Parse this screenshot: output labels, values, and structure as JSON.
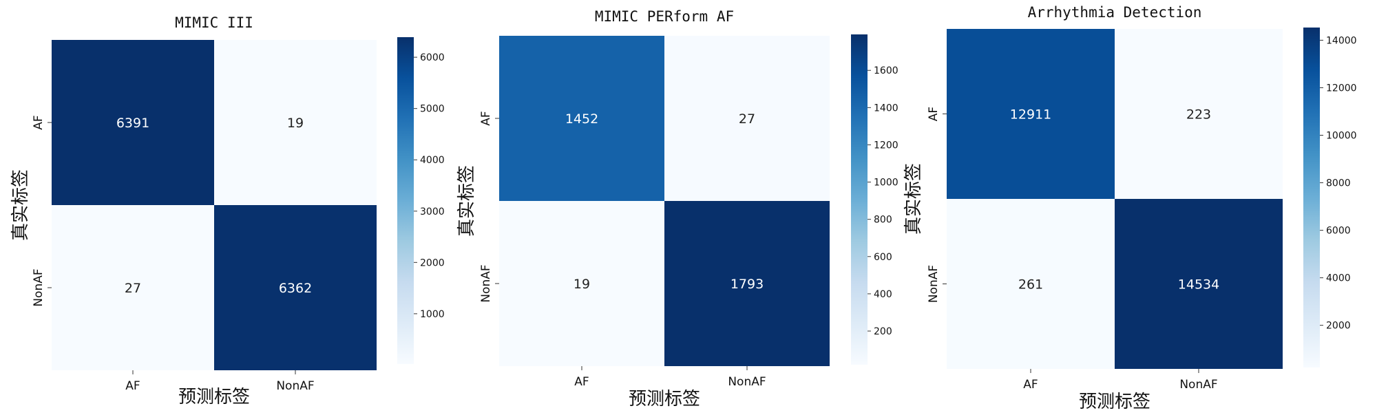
{
  "chart_data": [
    {
      "type": "heatmap",
      "title": "MIMIC III",
      "xlabel": "预测标签",
      "ylabel": "真实标签",
      "x_categories": [
        "AF",
        "NonAF"
      ],
      "y_categories": [
        "AF",
        "NonAF"
      ],
      "matrix": [
        [
          6391,
          19
        ],
        [
          27,
          6362
        ]
      ],
      "colormap": "Blues",
      "vmin": 19,
      "vmax": 6391,
      "colorbar_ticks": [
        1000,
        2000,
        3000,
        4000,
        5000,
        6000
      ]
    },
    {
      "type": "heatmap",
      "title": "MIMIC PERform AF",
      "xlabel": "预测标签",
      "ylabel": "真实标签",
      "x_categories": [
        "AF",
        "NonAF"
      ],
      "y_categories": [
        "AF",
        "NonAF"
      ],
      "matrix": [
        [
          1452,
          27
        ],
        [
          19,
          1793
        ]
      ],
      "colormap": "Blues",
      "vmin": 19,
      "vmax": 1793,
      "colorbar_ticks": [
        200,
        400,
        600,
        800,
        1000,
        1200,
        1400,
        1600
      ]
    },
    {
      "type": "heatmap",
      "title": "Arrhythmia Detection",
      "xlabel": "预测标签",
      "ylabel": "真实标签",
      "x_categories": [
        "AF",
        "NonAF"
      ],
      "y_categories": [
        "AF",
        "NonAF"
      ],
      "matrix": [
        [
          12911,
          223
        ],
        [
          261,
          14534
        ]
      ],
      "colormap": "Blues",
      "vmin": 223,
      "vmax": 14534,
      "colorbar_ticks": [
        2000,
        4000,
        6000,
        8000,
        10000,
        12000,
        14000
      ]
    }
  ]
}
